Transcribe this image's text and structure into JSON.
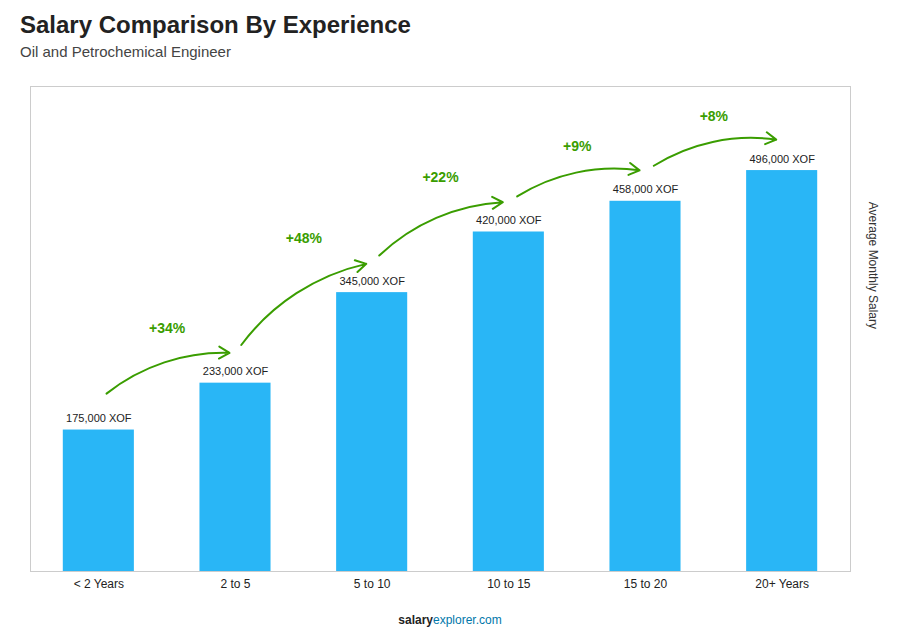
{
  "chart_data": {
    "type": "bar",
    "title": "Salary Comparison By Experience",
    "subtitle": "Oil and Petrochemical Engineer",
    "categories": [
      "< 2 Years",
      "2 to 5",
      "5 to 10",
      "10 to 15",
      "15 to 20",
      "20+ Years"
    ],
    "values": [
      175000,
      233000,
      345000,
      420000,
      458000,
      496000
    ],
    "value_labels": [
      "175,000 XOF",
      "233,000 XOF",
      "345,000 XOF",
      "420,000 XOF",
      "458,000 XOF",
      "496,000 XOF"
    ],
    "data_labels": true,
    "color": "#29b6f6",
    "ylabel": "Average Monthly Salary",
    "ylim": [
      0,
      600000
    ],
    "tick_labels": "x",
    "grid": false,
    "annotations": [
      "+34%",
      "+48%",
      "+22%",
      "+9%",
      "+8%"
    ],
    "footer": [
      "salary",
      "explorer.com"
    ]
  }
}
